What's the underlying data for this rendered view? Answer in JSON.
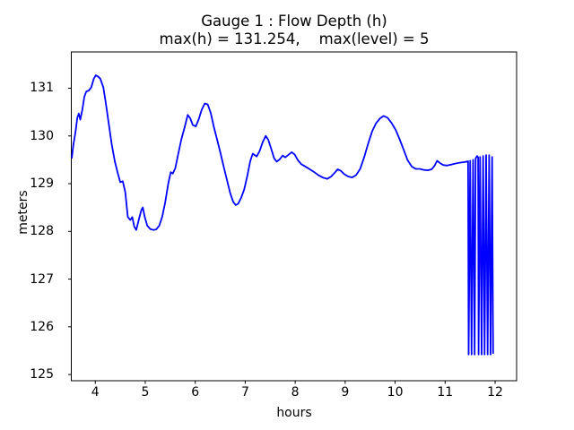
{
  "chart_data": {
    "type": "line",
    "title": "Gauge 1 : Flow Depth (h)",
    "subtitle": "max(h) = 131.254,    max(level) = 5",
    "xlabel": "hours",
    "ylabel": "meters",
    "x_ticks": [
      4,
      5,
      6,
      7,
      8,
      9,
      10,
      11,
      12
    ],
    "y_ticks": [
      125,
      126,
      127,
      128,
      129,
      130,
      131
    ],
    "xlim": [
      3.52,
      12.43
    ],
    "ylim": [
      124.87,
      131.76
    ],
    "grid": false,
    "legend": "none",
    "line_color": "#0000ff",
    "max_h": 131.254,
    "max_level": 5,
    "series": [
      {
        "name": "Flow Depth (h)",
        "points": [
          [
            3.53,
            129.54
          ],
          [
            3.56,
            129.8
          ],
          [
            3.6,
            130.06
          ],
          [
            3.64,
            130.38
          ],
          [
            3.67,
            130.47
          ],
          [
            3.7,
            130.34
          ],
          [
            3.74,
            130.55
          ],
          [
            3.78,
            130.82
          ],
          [
            3.82,
            130.93
          ],
          [
            3.87,
            130.95
          ],
          [
            3.92,
            131.02
          ],
          [
            3.97,
            131.2
          ],
          [
            4.01,
            131.27
          ],
          [
            4.05,
            131.25
          ],
          [
            4.1,
            131.2
          ],
          [
            4.16,
            131.02
          ],
          [
            4.21,
            130.7
          ],
          [
            4.27,
            130.25
          ],
          [
            4.33,
            129.82
          ],
          [
            4.39,
            129.47
          ],
          [
            4.45,
            129.22
          ],
          [
            4.5,
            129.03
          ],
          [
            4.55,
            129.05
          ],
          [
            4.6,
            128.82
          ],
          [
            4.65,
            128.3
          ],
          [
            4.7,
            128.24
          ],
          [
            4.74,
            128.3
          ],
          [
            4.78,
            128.1
          ],
          [
            4.82,
            128.03
          ],
          [
            4.87,
            128.24
          ],
          [
            4.92,
            128.44
          ],
          [
            4.95,
            128.5
          ],
          [
            4.99,
            128.3
          ],
          [
            5.04,
            128.12
          ],
          [
            5.1,
            128.05
          ],
          [
            5.16,
            128.03
          ],
          [
            5.22,
            128.04
          ],
          [
            5.28,
            128.12
          ],
          [
            5.34,
            128.31
          ],
          [
            5.4,
            128.62
          ],
          [
            5.46,
            129.0
          ],
          [
            5.51,
            129.24
          ],
          [
            5.55,
            129.21
          ],
          [
            5.6,
            129.32
          ],
          [
            5.66,
            129.62
          ],
          [
            5.72,
            129.92
          ],
          [
            5.79,
            130.19
          ],
          [
            5.85,
            130.44
          ],
          [
            5.9,
            130.37
          ],
          [
            5.95,
            130.23
          ],
          [
            6.01,
            130.2
          ],
          [
            6.07,
            130.35
          ],
          [
            6.13,
            130.55
          ],
          [
            6.19,
            130.68
          ],
          [
            6.25,
            130.66
          ],
          [
            6.31,
            130.48
          ],
          [
            6.37,
            130.2
          ],
          [
            6.43,
            129.95
          ],
          [
            6.5,
            129.66
          ],
          [
            6.57,
            129.35
          ],
          [
            6.64,
            129.05
          ],
          [
            6.7,
            128.8
          ],
          [
            6.76,
            128.62
          ],
          [
            6.81,
            128.55
          ],
          [
            6.86,
            128.58
          ],
          [
            6.92,
            128.71
          ],
          [
            6.98,
            128.88
          ],
          [
            7.04,
            129.15
          ],
          [
            7.1,
            129.47
          ],
          [
            7.15,
            129.63
          ],
          [
            7.19,
            129.6
          ],
          [
            7.23,
            129.57
          ],
          [
            7.29,
            129.69
          ],
          [
            7.35,
            129.87
          ],
          [
            7.41,
            130.0
          ],
          [
            7.46,
            129.92
          ],
          [
            7.52,
            129.73
          ],
          [
            7.58,
            129.53
          ],
          [
            7.63,
            129.46
          ],
          [
            7.69,
            129.51
          ],
          [
            7.75,
            129.59
          ],
          [
            7.8,
            129.55
          ],
          [
            7.86,
            129.6
          ],
          [
            7.93,
            129.66
          ],
          [
            7.99,
            129.61
          ],
          [
            8.05,
            129.5
          ],
          [
            8.12,
            129.41
          ],
          [
            8.2,
            129.36
          ],
          [
            8.28,
            129.31
          ],
          [
            8.37,
            129.25
          ],
          [
            8.46,
            129.18
          ],
          [
            8.55,
            129.13
          ],
          [
            8.64,
            129.1
          ],
          [
            8.72,
            129.15
          ],
          [
            8.79,
            129.23
          ],
          [
            8.85,
            129.3
          ],
          [
            8.91,
            129.27
          ],
          [
            8.98,
            129.2
          ],
          [
            9.06,
            129.15
          ],
          [
            9.14,
            129.13
          ],
          [
            9.22,
            129.18
          ],
          [
            9.3,
            129.31
          ],
          [
            9.38,
            129.55
          ],
          [
            9.46,
            129.84
          ],
          [
            9.54,
            130.1
          ],
          [
            9.62,
            130.27
          ],
          [
            9.7,
            130.37
          ],
          [
            9.77,
            130.42
          ],
          [
            9.85,
            130.38
          ],
          [
            9.93,
            130.27
          ],
          [
            10.01,
            130.13
          ],
          [
            10.09,
            129.93
          ],
          [
            10.17,
            129.71
          ],
          [
            10.25,
            129.49
          ],
          [
            10.33,
            129.36
          ],
          [
            10.41,
            129.31
          ],
          [
            10.49,
            129.31
          ],
          [
            10.57,
            129.29
          ],
          [
            10.65,
            129.28
          ],
          [
            10.73,
            129.3
          ],
          [
            10.79,
            129.38
          ],
          [
            10.84,
            129.48
          ],
          [
            10.9,
            129.43
          ],
          [
            10.96,
            129.39
          ],
          [
            11.04,
            129.38
          ],
          [
            11.12,
            129.4
          ],
          [
            11.2,
            129.42
          ],
          [
            11.29,
            129.44
          ],
          [
            11.38,
            129.45
          ],
          [
            11.46,
            129.47
          ],
          [
            11.47,
            125.42
          ],
          [
            11.5,
            129.48
          ],
          [
            11.53,
            125.42
          ],
          [
            11.56,
            129.5
          ],
          [
            11.59,
            125.42
          ],
          [
            11.61,
            129.53
          ],
          [
            11.64,
            129.58
          ],
          [
            11.66,
            129.55
          ],
          [
            11.67,
            125.42
          ],
          [
            11.7,
            129.56
          ],
          [
            11.73,
            125.42
          ],
          [
            11.76,
            129.58
          ],
          [
            11.79,
            125.42
          ],
          [
            11.82,
            129.6
          ],
          [
            11.85,
            125.42
          ],
          [
            11.88,
            129.6
          ],
          [
            11.91,
            125.42
          ],
          [
            11.94,
            129.56
          ],
          [
            11.96,
            125.45
          ]
        ]
      }
    ]
  }
}
